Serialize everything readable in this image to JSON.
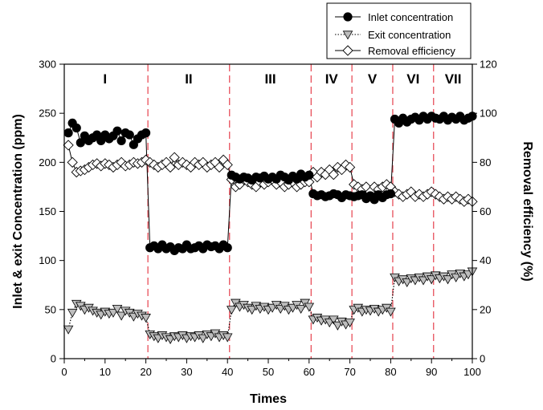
{
  "chart_data": {
    "type": "line",
    "title": "",
    "xlabel": "Times",
    "ylabel_left": "Inlet & exit Concentration (ppm)",
    "ylabel_right": "Removal efficiency (%)",
    "xlim": [
      0,
      100
    ],
    "ylim_left": [
      0,
      300
    ],
    "ylim_right": [
      0,
      120
    ],
    "x_ticks": [
      0,
      10,
      20,
      30,
      40,
      50,
      60,
      70,
      80,
      90,
      100
    ],
    "y_ticks_left": [
      0,
      50,
      100,
      150,
      200,
      250,
      300
    ],
    "y_ticks_right": [
      0,
      20,
      40,
      60,
      80,
      100,
      120
    ],
    "grid": false,
    "legend_position": "top-right",
    "phase_boundaries": [
      20.5,
      40.5,
      60.5,
      70.5,
      80.5,
      90.5
    ],
    "boundary_color": "#e8505b",
    "phases": [
      {
        "label": "I",
        "x": 10
      },
      {
        "label": "II",
        "x": 30.5
      },
      {
        "label": "III",
        "x": 50.5
      },
      {
        "label": "IV",
        "x": 65.5
      },
      {
        "label": "V",
        "x": 75.5
      },
      {
        "label": "VI",
        "x": 85.5
      },
      {
        "label": "VII",
        "x": 95.3
      }
    ],
    "series": [
      {
        "name": "Inlet concentration",
        "axis": "left",
        "marker": "filled-circle",
        "line_style": "solid",
        "color": "#000000",
        "x": [
          1,
          2,
          3,
          4,
          5,
          6,
          7,
          8,
          9,
          10,
          11,
          12,
          13,
          14,
          15,
          16,
          17,
          18,
          19,
          20,
          21,
          22,
          23,
          24,
          25,
          26,
          27,
          28,
          29,
          30,
          31,
          32,
          33,
          34,
          35,
          36,
          37,
          38,
          39,
          40,
          41,
          42,
          43,
          44,
          45,
          46,
          47,
          48,
          49,
          50,
          51,
          52,
          53,
          54,
          55,
          56,
          57,
          58,
          59,
          60,
          61,
          62,
          63,
          64,
          65,
          66,
          67,
          68,
          69,
          70,
          71,
          72,
          73,
          74,
          75,
          76,
          77,
          78,
          79,
          80,
          81,
          82,
          83,
          84,
          85,
          86,
          87,
          88,
          89,
          90,
          91,
          92,
          93,
          94,
          95,
          96,
          97,
          98,
          99,
          100
        ],
        "values": [
          230,
          240,
          235,
          220,
          227,
          222,
          225,
          228,
          222,
          228,
          224,
          227,
          232,
          222,
          230,
          228,
          218,
          224,
          228,
          230,
          113,
          115,
          112,
          116,
          112,
          114,
          110,
          113,
          112,
          116,
          112,
          113,
          115,
          112,
          116,
          114,
          115,
          112,
          116,
          113,
          187,
          185,
          183,
          185,
          184,
          182,
          185,
          184,
          186,
          183,
          185,
          183,
          187,
          185,
          182,
          186,
          183,
          188,
          185,
          187,
          168,
          166,
          167,
          165,
          166,
          168,
          167,
          164,
          167,
          166,
          165,
          166,
          167,
          163,
          166,
          162,
          167,
          164,
          167,
          168,
          244,
          240,
          245,
          241,
          244,
          246,
          243,
          247,
          244,
          247,
          245,
          244,
          247,
          243,
          246,
          244,
          247,
          243,
          245,
          247
        ]
      },
      {
        "name": "Exit concentration",
        "axis": "left",
        "marker": "down-triangle",
        "line_style": "dotted",
        "color": "#000000",
        "x": [
          1,
          2,
          3,
          4,
          5,
          6,
          7,
          8,
          9,
          10,
          11,
          12,
          13,
          14,
          15,
          16,
          17,
          18,
          19,
          20,
          21,
          22,
          23,
          24,
          25,
          26,
          27,
          28,
          29,
          30,
          31,
          32,
          33,
          34,
          35,
          36,
          37,
          38,
          39,
          40,
          41,
          42,
          43,
          44,
          45,
          46,
          47,
          48,
          49,
          50,
          51,
          52,
          53,
          54,
          55,
          56,
          57,
          58,
          59,
          60,
          61,
          62,
          63,
          64,
          65,
          66,
          67,
          68,
          69,
          70,
          71,
          72,
          73,
          74,
          75,
          76,
          77,
          78,
          79,
          80,
          81,
          82,
          83,
          84,
          85,
          86,
          87,
          88,
          89,
          90,
          91,
          92,
          93,
          94,
          95,
          96,
          97,
          98,
          99,
          100
        ],
        "values": [
          30,
          47,
          56,
          54,
          50,
          52,
          49,
          47,
          45,
          48,
          46,
          47,
          51,
          44,
          49,
          47,
          43,
          46,
          44,
          42,
          25,
          23,
          21,
          24,
          22,
          20,
          23,
          22,
          24,
          21,
          23,
          22,
          24,
          21,
          25,
          23,
          26,
          22,
          24,
          22,
          50,
          57,
          53,
          55,
          52,
          50,
          54,
          51,
          53,
          50,
          52,
          55,
          51,
          54,
          50,
          52,
          55,
          51,
          57,
          53,
          40,
          42,
          39,
          40,
          37,
          40,
          34,
          38,
          35,
          37,
          50,
          52,
          48,
          50,
          49,
          51,
          48,
          50,
          52,
          48,
          83,
          79,
          81,
          78,
          82,
          80,
          83,
          80,
          84,
          81,
          85,
          82,
          84,
          81,
          86,
          83,
          87,
          84,
          86,
          89
        ]
      },
      {
        "name": "Removal efficiency",
        "axis": "right",
        "marker": "open-diamond",
        "line_style": "solid",
        "color": "#000000",
        "x": [
          1,
          2,
          3,
          4,
          5,
          6,
          7,
          8,
          9,
          10,
          11,
          12,
          13,
          14,
          15,
          16,
          17,
          18,
          19,
          20,
          21,
          22,
          23,
          24,
          25,
          26,
          27,
          28,
          29,
          30,
          31,
          32,
          33,
          34,
          35,
          36,
          37,
          38,
          39,
          40,
          41,
          42,
          43,
          44,
          45,
          46,
          47,
          48,
          49,
          50,
          51,
          52,
          53,
          54,
          55,
          56,
          57,
          58,
          59,
          60,
          61,
          62,
          63,
          64,
          65,
          66,
          67,
          68,
          69,
          70,
          71,
          72,
          73,
          74,
          75,
          76,
          77,
          78,
          79,
          80,
          81,
          82,
          83,
          84,
          85,
          86,
          87,
          88,
          89,
          90,
          91,
          92,
          93,
          94,
          95,
          96,
          97,
          98,
          99,
          100
        ],
        "values": [
          87,
          80,
          76,
          76.5,
          77,
          78,
          79,
          79.5,
          78.5,
          79.5,
          79,
          78,
          79,
          80,
          78.5,
          79,
          80,
          79.5,
          80,
          81,
          80,
          79,
          78,
          79,
          80,
          78,
          82,
          79,
          80,
          79,
          78,
          80,
          79,
          80,
          78,
          79,
          80,
          78,
          81,
          79,
          73,
          70,
          71,
          73,
          72,
          71,
          70,
          72,
          71,
          72,
          73,
          71,
          72,
          70,
          71,
          72,
          70,
          71,
          72,
          72,
          76,
          74,
          76,
          75,
          77,
          75,
          78,
          77,
          79,
          78,
          71,
          70,
          69,
          70,
          68,
          70,
          69,
          70,
          71,
          70,
          68,
          67,
          66,
          67,
          68,
          66,
          67,
          66,
          67,
          68,
          67,
          66,
          65,
          66,
          65,
          66,
          65,
          64,
          65,
          64
        ]
      }
    ]
  }
}
